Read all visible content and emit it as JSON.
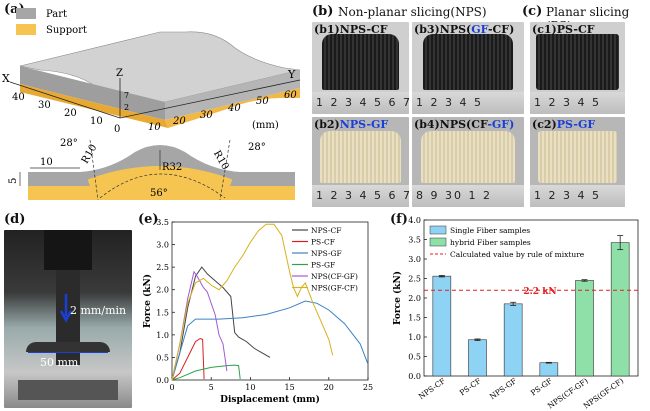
{
  "panels": {
    "a": "(a)",
    "b": "(b)",
    "b_title": "Non-planar slicing(NPS)",
    "c": "(c)",
    "c_title": "Planar slicing (PS)",
    "d": "(d)",
    "e": "(e)",
    "f": "(f)"
  },
  "panel_a": {
    "legend_part": "Part",
    "legend_support": "Support",
    "axis_x": "X",
    "axis_y": "Y",
    "axis_z": "Z",
    "unit": "(mm)",
    "x_ticks": [
      "40",
      "30",
      "20",
      "10",
      "0"
    ],
    "y_ticks": [
      "10",
      "20",
      "30",
      "40",
      "50",
      "60"
    ],
    "z_ticks": [
      "7",
      "2"
    ],
    "dims": {
      "angle_left": "28°",
      "r_left": "R10",
      "r_center": "R32",
      "angle_right": "28°",
      "r_right": "R10",
      "arc": "56°",
      "width": "10",
      "height": "5"
    },
    "colors": {
      "part": "#a6a6a6",
      "support": "#f5c451"
    }
  },
  "photos": {
    "b1": {
      "prefix": "(b1)",
      "main": "NPS-CF",
      "ruler": "1 2 3 4 5 6 7"
    },
    "b3": {
      "prefix": "(b3)",
      "pre": "NPS(",
      "hl": "GF",
      "post": "-CF)",
      "ruler": "1 2 3 4 5"
    },
    "c1": {
      "prefix": "(c1)",
      "main": "PS-CF",
      "ruler": "1 2 3 4 5"
    },
    "b2": {
      "prefix": "(b2)",
      "hl": "NPS-GF",
      "ruler": "1 2 3 4 5 6 7"
    },
    "b4": {
      "prefix": "(b4)",
      "pre": "NPS(",
      "main": "CF",
      "post": "-GF)",
      "ruler": "8 9 30 1 2"
    },
    "c2": {
      "prefix": "(c2)",
      "hl": "PS-GF",
      "ruler": "1 2 3 4 5"
    },
    "highlight_color": "#1a3fd6"
  },
  "panel_d": {
    "speed": "2 mm/min",
    "gauge": "50 mm"
  },
  "chart_data": [
    {
      "type": "line",
      "xlabel": "Displacement (mm)",
      "ylabel": "Force (kN)",
      "xlim": [
        0,
        25
      ],
      "ylim": [
        0,
        3.5
      ],
      "xticks": [
        0,
        5,
        10,
        15,
        20,
        25
      ],
      "yticks": [
        0.0,
        0.5,
        1.0,
        1.5,
        2.0,
        2.5,
        3.0,
        3.5
      ],
      "legend_position": "top-center",
      "series": [
        {
          "name": "NPS-CF",
          "color": "#444444",
          "points": [
            [
              0,
              0
            ],
            [
              1,
              0.6
            ],
            [
              2,
              1.6
            ],
            [
              3,
              2.3
            ],
            [
              3.8,
              2.5
            ],
            [
              4.5,
              2.35
            ],
            [
              5.5,
              2.2
            ],
            [
              6.5,
              2.05
            ],
            [
              7.5,
              1.85
            ],
            [
              8,
              1.05
            ],
            [
              8.5,
              0.95
            ],
            [
              9.5,
              0.85
            ],
            [
              10.5,
              0.7
            ],
            [
              11.5,
              0.6
            ],
            [
              12.5,
              0.5
            ]
          ]
        },
        {
          "name": "PS-CF",
          "color": "#d62020",
          "points": [
            [
              0,
              0
            ],
            [
              1,
              0.15
            ],
            [
              2,
              0.5
            ],
            [
              3,
              0.85
            ],
            [
              3.6,
              0.92
            ],
            [
              3.9,
              0.9
            ],
            [
              4.1,
              0.02
            ]
          ]
        },
        {
          "name": "NPS-GF",
          "color": "#3b82c4",
          "points": [
            [
              0,
              0
            ],
            [
              1,
              0.6
            ],
            [
              2,
              1.2
            ],
            [
              3,
              1.35
            ],
            [
              6,
              1.35
            ],
            [
              9,
              1.38
            ],
            [
              12,
              1.45
            ],
            [
              15,
              1.6
            ],
            [
              17,
              1.75
            ],
            [
              18.5,
              1.7
            ],
            [
              20,
              1.55
            ],
            [
              22,
              1.25
            ],
            [
              24,
              0.8
            ],
            [
              25,
              0.35
            ]
          ]
        },
        {
          "name": "PS-GF",
          "color": "#2aa34a",
          "points": [
            [
              0,
              0
            ],
            [
              1,
              0.05
            ],
            [
              3,
              0.2
            ],
            [
              5,
              0.28
            ],
            [
              7,
              0.32
            ],
            [
              8,
              0.33
            ],
            [
              8.5,
              0.32
            ],
            [
              8.7,
              0.02
            ]
          ]
        },
        {
          "name": "NPS(CF-GF)",
          "color": "#a35ad8",
          "points": [
            [
              0,
              0
            ],
            [
              1,
              0.8
            ],
            [
              2,
              1.8
            ],
            [
              2.8,
              2.4
            ],
            [
              3.2,
              2.3
            ],
            [
              4,
              2.05
            ],
            [
              4.5,
              1.95
            ],
            [
              5,
              1.7
            ],
            [
              5.5,
              1.45
            ],
            [
              6,
              1.0
            ],
            [
              6.5,
              0.8
            ],
            [
              7,
              0.2
            ]
          ]
        },
        {
          "name": "NPS(GF-CF)",
          "color": "#d6b21e",
          "points": [
            [
              0,
              0
            ],
            [
              1,
              0.8
            ],
            [
              2,
              1.7
            ],
            [
              3,
              2.15
            ],
            [
              4,
              2.25
            ],
            [
              5,
              2.1
            ],
            [
              6,
              2.0
            ],
            [
              7,
              2.2
            ],
            [
              8,
              2.5
            ],
            [
              9,
              2.75
            ],
            [
              10,
              3.05
            ],
            [
              11,
              3.3
            ],
            [
              12,
              3.45
            ],
            [
              13,
              3.45
            ],
            [
              14,
              3.2
            ],
            [
              15,
              2.4
            ],
            [
              15.5,
              2.05
            ],
            [
              16,
              1.85
            ],
            [
              16.5,
              2.05
            ],
            [
              17,
              2.15
            ],
            [
              18,
              1.7
            ],
            [
              19,
              1.3
            ],
            [
              20,
              0.9
            ],
            [
              20.5,
              0.55
            ]
          ]
        }
      ]
    },
    {
      "type": "bar",
      "ylabel": "Force (kN)",
      "ylim": [
        0,
        4.0
      ],
      "yticks": [
        0.0,
        0.5,
        1.0,
        1.5,
        2.0,
        2.5,
        3.0,
        3.5,
        4.0
      ],
      "categories": [
        "NPS-CF",
        "PS-CF",
        "NPS-GF",
        "PS-GF",
        "NPS(CF-GF)",
        "NPS(GF-CF)"
      ],
      "values": [
        2.56,
        0.93,
        1.85,
        0.34,
        2.45,
        3.42
      ],
      "errors": [
        0.02,
        0.02,
        0.04,
        0.01,
        0.02,
        0.18
      ],
      "groups": [
        "single",
        "single",
        "single",
        "single",
        "hybrid",
        "hybrid"
      ],
      "colors": {
        "single": "#8fd3f4",
        "hybrid": "#8ee0a8"
      },
      "legend": [
        "Single Fiber samples",
        "hybrid Fiber samples",
        "Calculated value by rule of mixture"
      ],
      "legend_position": "top-left",
      "reference_line": {
        "value": 2.2,
        "label": "2.2 kN",
        "color": "#e02020"
      }
    }
  ]
}
